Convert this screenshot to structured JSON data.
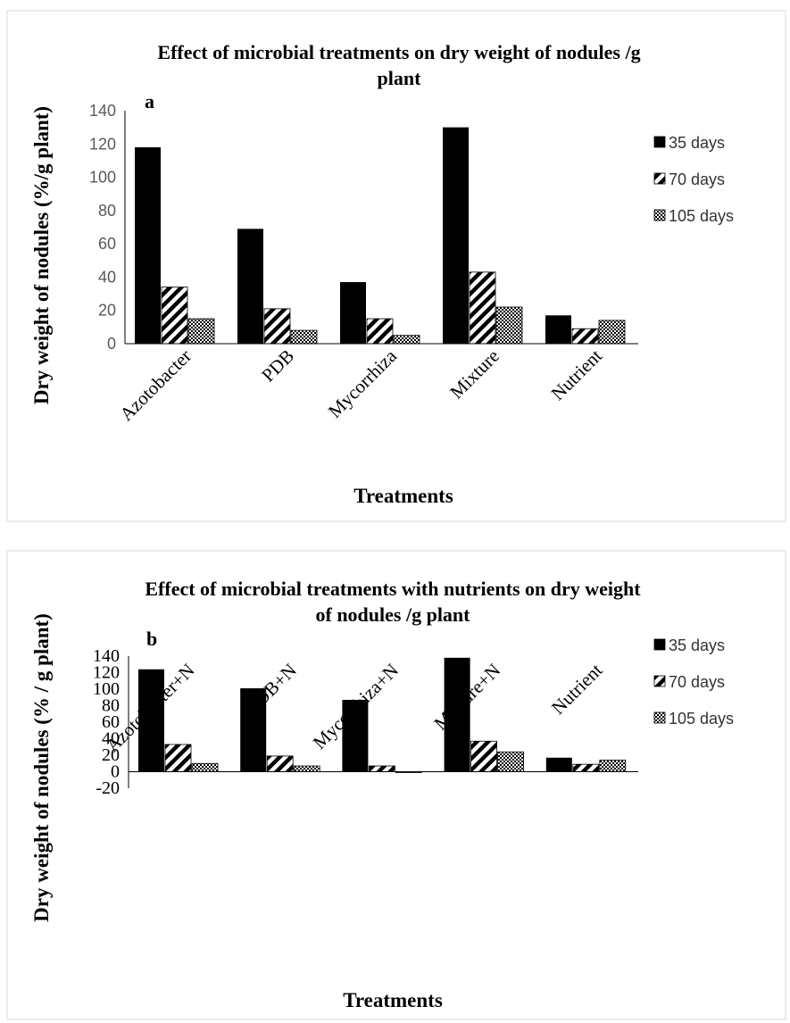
{
  "chart_data": [
    {
      "type": "bar",
      "panel_label": "a",
      "title_lines": [
        "Effect of microbial treatments on dry weight of  nodules /g",
        "plant"
      ],
      "xlabel": "Treatments",
      "ylabel": "Dry weight of nodules (%/g plant)",
      "ylim": [
        0,
        140
      ],
      "yticks": [
        "0",
        "20",
        "40",
        "60",
        "80",
        "100",
        "120",
        "140"
      ],
      "categories": [
        "Azotobacter",
        "PDB",
        "Mycorrhiza",
        "Mixture",
        "Nutrient"
      ],
      "series": [
        {
          "name": "35 days",
          "values": [
            118,
            69,
            37,
            130,
            17
          ]
        },
        {
          "name": "70 days",
          "values": [
            34,
            21,
            15,
            43,
            9
          ]
        },
        {
          "name": "105 days",
          "values": [
            15,
            8,
            5,
            22,
            14
          ]
        }
      ],
      "legend": "right",
      "grid": false
    },
    {
      "type": "bar",
      "panel_label": "b",
      "title_lines": [
        "Effect of microbial treatments with nutrients on dry weight",
        "of nodules /g plant"
      ],
      "xlabel": "Treatments",
      "ylabel": "Dry weight of nodules (% / g plant)",
      "ylim": [
        -20,
        140
      ],
      "yticks": [
        "-20",
        "0",
        "20",
        "40",
        "60",
        "80",
        "100",
        "120",
        "140"
      ],
      "categories": [
        "Azotobacter+N",
        "PDB+N",
        "Mycorrhiza+N",
        "Mixture+N",
        "Nutrient"
      ],
      "series": [
        {
          "name": "35 days",
          "values": [
            124,
            101,
            87,
            138,
            17
          ]
        },
        {
          "name": "70 days",
          "values": [
            33,
            19,
            7,
            37,
            9
          ]
        },
        {
          "name": "105 days",
          "values": [
            10,
            7,
            -1,
            24,
            14
          ]
        }
      ],
      "legend": "right",
      "grid": false
    }
  ]
}
